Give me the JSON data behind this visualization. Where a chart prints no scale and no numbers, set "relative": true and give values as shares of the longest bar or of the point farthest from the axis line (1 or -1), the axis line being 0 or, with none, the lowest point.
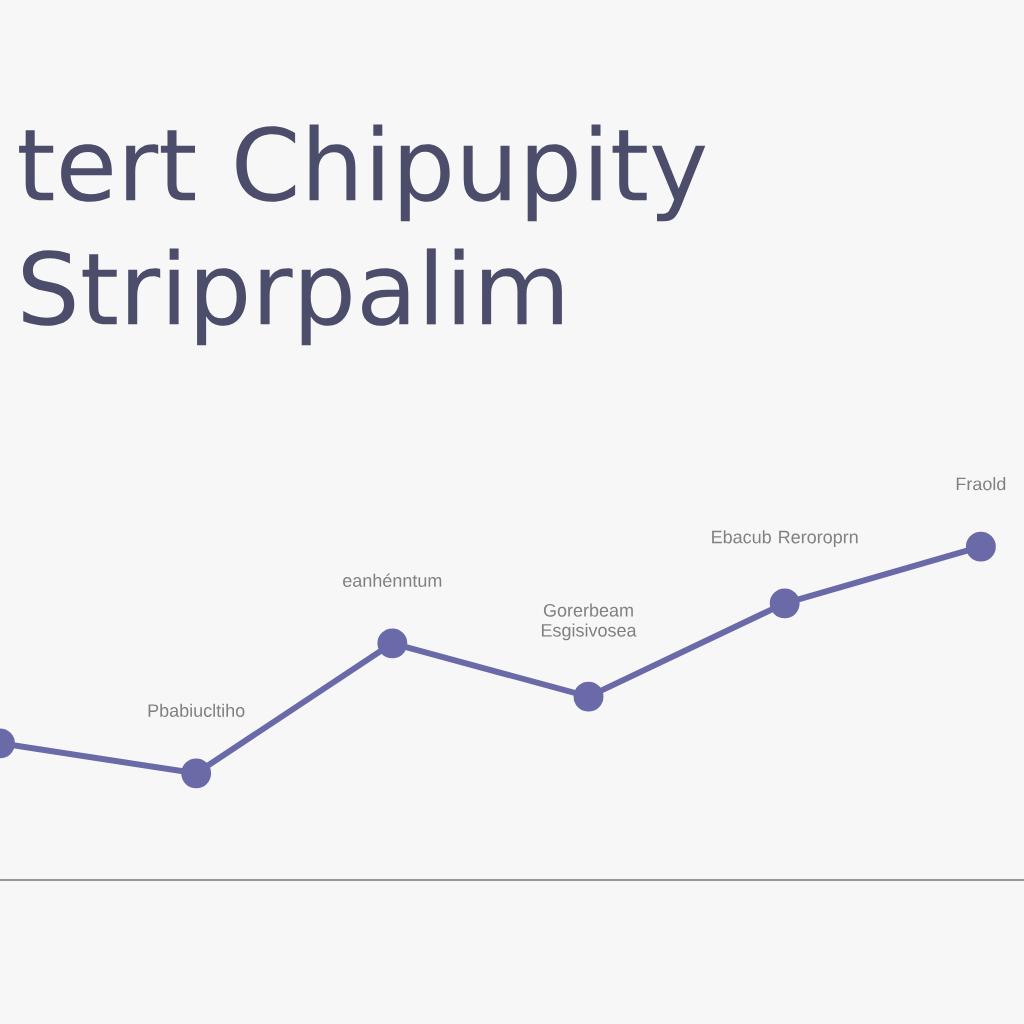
{
  "chart_data": {
    "type": "line",
    "title": "tert Chipupity Striprpalim",
    "relative": true,
    "categories": [
      null,
      null,
      null,
      null,
      null,
      null
    ],
    "series": [
      {
        "color": "#6b6aa8",
        "values": [
          0.41,
          0.32,
          0.71,
          0.55,
          0.83,
          1.0
        ]
      }
    ],
    "marker": "circle",
    "line_style": "solid",
    "grid": false,
    "annotations": [
      "Pbabiucltiho",
      "eanhénntum",
      "Gorerbeam Esgisivosea",
      "Ebacub Reroroprn",
      "Fraold"
    ]
  }
}
